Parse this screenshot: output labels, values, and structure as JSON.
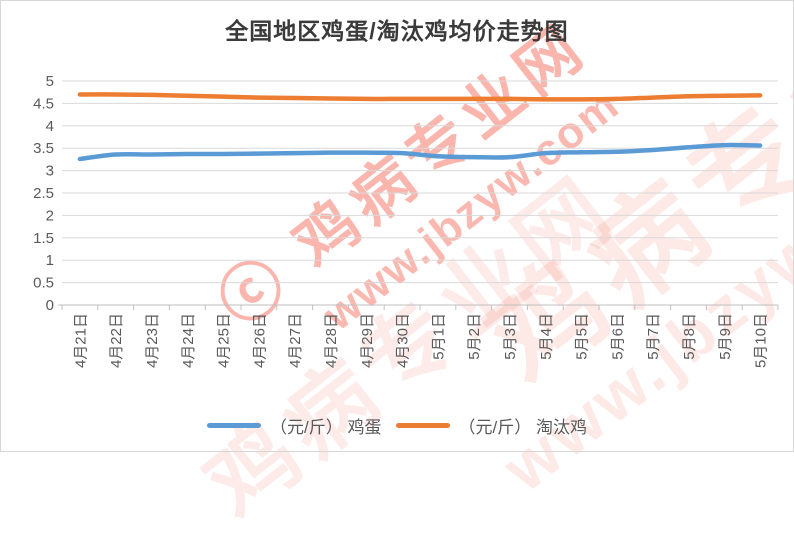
{
  "page": {
    "title": "全国地区鸡蛋/淘汰鸡均价走势图"
  },
  "watermark": {
    "copyright_mark": "ⓒ",
    "site_name": "鸡病专业网",
    "site_url": "www.jbzyw.com"
  },
  "chart_data": {
    "type": "line",
    "title": "全国地区鸡蛋/淘汰鸡均价走势图",
    "xlabel": "",
    "ylabel": "",
    "ylim": [
      0,
      5
    ],
    "ytick_step": 0.5,
    "ytick_labels": [
      "0",
      "0.5",
      "1",
      "1.5",
      "2",
      "2.5",
      "3",
      "3.5",
      "4",
      "4.5",
      "5"
    ],
    "grid": "horizontal",
    "legend_position": "bottom",
    "gridline_color": "#d9d9d9",
    "axis_line_color": "#bfbfbf",
    "axis_label_color": "#595959",
    "categories": [
      "4月21日",
      "4月22日",
      "4月23日",
      "4月24日",
      "4月25日",
      "4月26日",
      "4月27日",
      "4月28日",
      "4月29日",
      "4月30日",
      "5月1日",
      "5月2日",
      "5月3日",
      "5月4日",
      "5月5日",
      "5月6日",
      "5月7日",
      "5月8日",
      "5月9日",
      "5月10日"
    ],
    "series": [
      {
        "name": "（元/斤） 鸡蛋",
        "color": "#5b9bd5",
        "values": [
          3.26,
          3.36,
          3.36,
          3.37,
          3.37,
          3.38,
          3.39,
          3.4,
          3.4,
          3.39,
          3.32,
          3.3,
          3.3,
          3.39,
          3.41,
          3.42,
          3.46,
          3.52,
          3.57,
          3.56
        ]
      },
      {
        "name": "（元/斤） 淘汰鸡",
        "color": "#ed7d31",
        "values": [
          4.7,
          4.7,
          4.69,
          4.67,
          4.65,
          4.63,
          4.62,
          4.61,
          4.6,
          4.6,
          4.6,
          4.6,
          4.6,
          4.59,
          4.59,
          4.6,
          4.63,
          4.66,
          4.67,
          4.68
        ]
      }
    ]
  }
}
